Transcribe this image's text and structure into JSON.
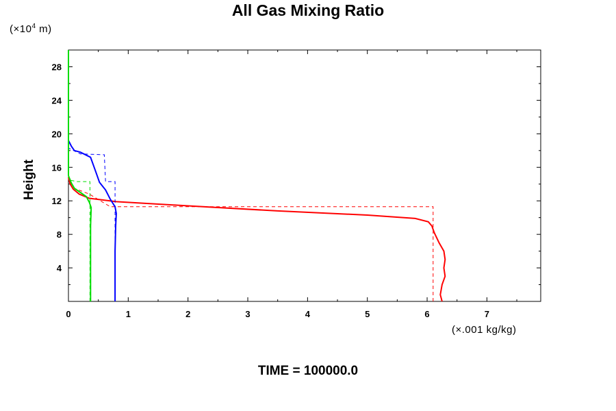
{
  "chart_data": {
    "type": "line",
    "title": "All Gas Mixing Ratio",
    "ylabel": "Height",
    "y_unit_prefix": "(×10",
    "y_unit_exp": "4",
    "y_unit_suffix": " m)",
    "x_unit": "(×.001 kg/kg)",
    "footer": "TIME = 100000.0",
    "xlim": [
      0,
      7.9
    ],
    "ylim": [
      0,
      30
    ],
    "x_ticks": [
      "0",
      "1",
      "2",
      "3",
      "4",
      "5",
      "6",
      "7"
    ],
    "y_ticks": [
      "4",
      "8",
      "12",
      "16",
      "20",
      "24",
      "28"
    ],
    "grid": false,
    "series": [
      {
        "color": "#ff0000",
        "dash": false,
        "points": [
          [
            6.25,
            0
          ],
          [
            6.22,
            0.8
          ],
          [
            6.25,
            2
          ],
          [
            6.3,
            3
          ],
          [
            6.28,
            4
          ],
          [
            6.3,
            5
          ],
          [
            6.28,
            6
          ],
          [
            6.2,
            7
          ],
          [
            6.12,
            8.2
          ],
          [
            6.08,
            9
          ],
          [
            6.02,
            9.5
          ],
          [
            5.8,
            9.9
          ],
          [
            5.0,
            10.3
          ],
          [
            3.5,
            10.8
          ],
          [
            2.0,
            11.4
          ],
          [
            0.8,
            11.9
          ],
          [
            0.35,
            12.3
          ],
          [
            0.18,
            12.8
          ],
          [
            0.08,
            13.4
          ],
          [
            0.03,
            14.0
          ],
          [
            0.0,
            14.8
          ]
        ]
      },
      {
        "color": "#ff0000",
        "dash": true,
        "points": [
          [
            6.1,
            0
          ],
          [
            6.1,
            11.3
          ],
          [
            0.7,
            11.3
          ],
          [
            0.35,
            12.8
          ],
          [
            0.1,
            13.5
          ],
          [
            0.0,
            14.5
          ]
        ]
      },
      {
        "color": "#0000ff",
        "dash": false,
        "points": [
          [
            0.78,
            0
          ],
          [
            0.78,
            6
          ],
          [
            0.79,
            9
          ],
          [
            0.8,
            10.5
          ],
          [
            0.78,
            11.3
          ],
          [
            0.7,
            12.2
          ],
          [
            0.62,
            13.3
          ],
          [
            0.52,
            14.2
          ],
          [
            0.47,
            15.2
          ],
          [
            0.42,
            16.2
          ],
          [
            0.37,
            17.2
          ],
          [
            0.2,
            17.8
          ],
          [
            0.1,
            18.0
          ],
          [
            0.05,
            18.5
          ],
          [
            0.0,
            19.2
          ]
        ]
      },
      {
        "color": "#0000ff",
        "dash": true,
        "points": [
          [
            0.78,
            0
          ],
          [
            0.78,
            14.3
          ],
          [
            0.62,
            14.3
          ],
          [
            0.6,
            17.5
          ],
          [
            0.2,
            17.6
          ],
          [
            0.0,
            18.3
          ]
        ]
      },
      {
        "color": "#00dd00",
        "dash": false,
        "points": [
          [
            0.37,
            0
          ],
          [
            0.37,
            9
          ],
          [
            0.38,
            11.2
          ],
          [
            0.35,
            11.8
          ],
          [
            0.3,
            12.5
          ],
          [
            0.2,
            13.0
          ],
          [
            0.1,
            13.5
          ],
          [
            0.05,
            14.1
          ],
          [
            0.0,
            15.0
          ]
        ]
      },
      {
        "color": "#00dd00",
        "dash": true,
        "points": [
          [
            0.36,
            0
          ],
          [
            0.36,
            14.3
          ],
          [
            0.15,
            14.3
          ],
          [
            0.0,
            14.5
          ]
        ]
      },
      {
        "color": "#00dd00",
        "dash": false,
        "points": [
          [
            0.0,
            15.0
          ],
          [
            0.0,
            30.0
          ]
        ]
      }
    ]
  }
}
